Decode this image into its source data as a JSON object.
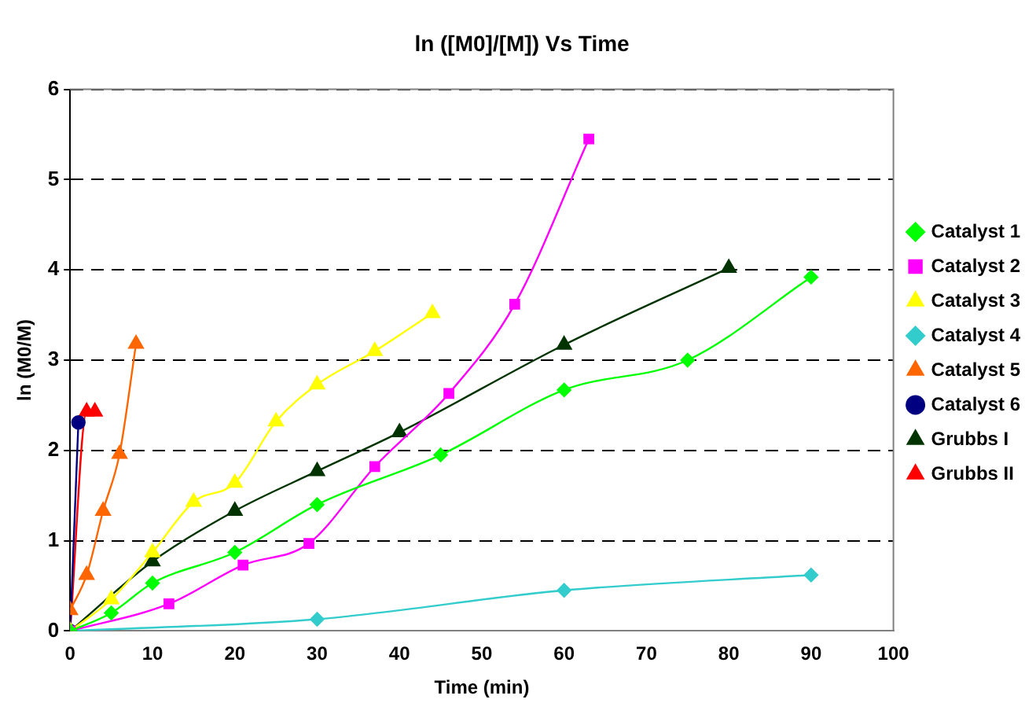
{
  "chart_data": {
    "type": "line",
    "title": "ln ([M0]/[M]) Vs Time",
    "xlabel": "Time (min)",
    "ylabel": "ln (M0/M)",
    "xlim": [
      0,
      100
    ],
    "xticks": [
      0,
      10,
      20,
      30,
      40,
      50,
      60,
      70,
      80,
      90,
      100
    ],
    "ylim": [
      0,
      6
    ],
    "yticks": [
      0,
      1,
      2,
      3,
      4,
      5,
      6
    ],
    "grid": "y",
    "legend": "right",
    "line_style": "solid",
    "series": [
      {
        "name": "Catalyst 1",
        "color": "#00ff00",
        "marker": "diamond",
        "x": [
          0,
          5,
          10,
          20,
          30,
          45,
          60,
          75,
          90
        ],
        "values": [
          0,
          0.2,
          0.53,
          0.87,
          1.4,
          1.95,
          2.67,
          3.0,
          3.92
        ]
      },
      {
        "name": "Catalyst 2",
        "color": "#ff00ff",
        "marker": "square",
        "x": [
          0,
          12,
          21,
          29,
          37,
          46,
          54,
          63
        ],
        "values": [
          0,
          0.3,
          0.73,
          0.97,
          1.82,
          2.63,
          3.62,
          5.45
        ]
      },
      {
        "name": "Catalyst 3",
        "color": "#ffff00",
        "marker": "triangle",
        "x": [
          0,
          5,
          10,
          15,
          20,
          25,
          30,
          37,
          44
        ],
        "values": [
          0,
          0.35,
          0.87,
          1.43,
          1.64,
          2.32,
          2.73,
          3.1,
          3.52
        ]
      },
      {
        "name": "Catalyst 4",
        "color": "#33cccc",
        "marker": "diamond",
        "x": [
          0,
          30,
          60,
          90
        ],
        "values": [
          0,
          0.13,
          0.45,
          0.62
        ]
      },
      {
        "name": "Catalyst 5",
        "color": "#ff6600",
        "marker": "triangle",
        "x": [
          0,
          2,
          4,
          6,
          8
        ],
        "values": [
          0.23,
          0.62,
          1.33,
          1.96,
          3.18
        ]
      },
      {
        "name": "Catalyst 6",
        "color": "#000080",
        "marker": "circle",
        "x": [
          0,
          1
        ],
        "values": [
          0,
          2.31
        ]
      },
      {
        "name": "Grubbs I",
        "color": "#003300",
        "marker": "triangle",
        "x": [
          0,
          10,
          20,
          30,
          40,
          60,
          80
        ],
        "values": [
          0,
          0.77,
          1.33,
          1.77,
          2.2,
          3.17,
          4.02
        ]
      },
      {
        "name": "Grubbs II",
        "color": "#ff0000",
        "marker": "triangle",
        "x": [
          0,
          2,
          3
        ],
        "values": [
          0,
          2.43,
          2.43
        ]
      }
    ]
  }
}
